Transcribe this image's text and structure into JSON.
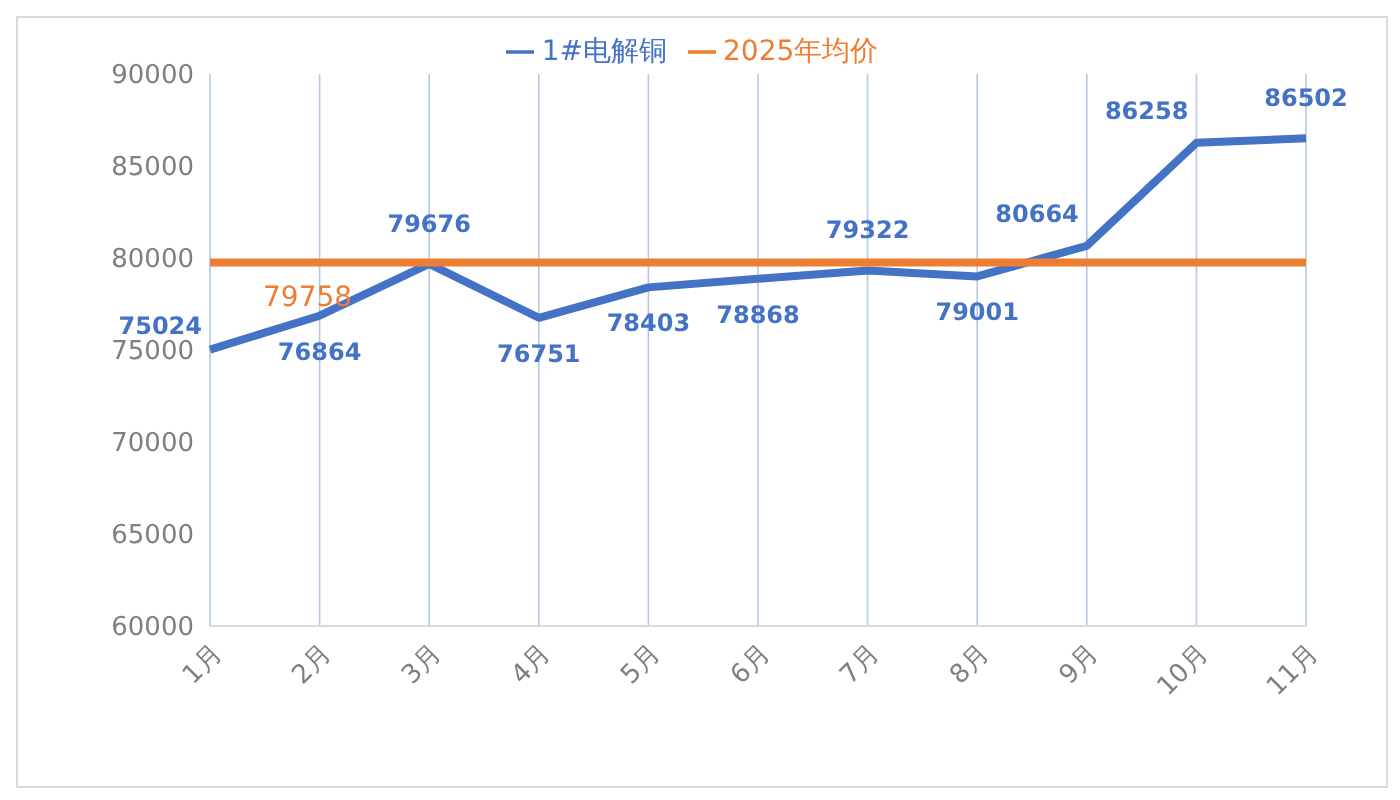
{
  "chart_data": {
    "type": "line",
    "categories": [
      "1月",
      "2月",
      "3月",
      "4月",
      "5月",
      "6月",
      "7月",
      "8月",
      "9月",
      "10月",
      "11月"
    ],
    "series": [
      {
        "name": "1#电解铜",
        "color": "#4472c4",
        "values": [
          75024,
          76864,
          79676,
          76751,
          78403,
          78868,
          79322,
          79001,
          80664,
          86258,
          86502
        ],
        "value_labels": [
          "75024",
          "76864",
          "79676",
          "76751",
          "78403",
          "78868",
          "79322",
          "79001",
          "80664",
          "86258",
          "86502"
        ]
      },
      {
        "name": "2025年均价",
        "color": "#ed7d31",
        "values": [
          79758,
          79758,
          79758,
          79758,
          79758,
          79758,
          79758,
          79758,
          79758,
          79758,
          79758
        ],
        "value_labels": [
          null,
          "79758",
          null,
          null,
          null,
          null,
          null,
          null,
          null,
          null,
          null
        ]
      }
    ],
    "ylim": [
      60000,
      90000
    ],
    "yticks": [
      60000,
      65000,
      70000,
      75000,
      80000,
      85000,
      90000
    ],
    "grid": "x",
    "legend": "top",
    "marker": "none",
    "line_style": "solid"
  }
}
